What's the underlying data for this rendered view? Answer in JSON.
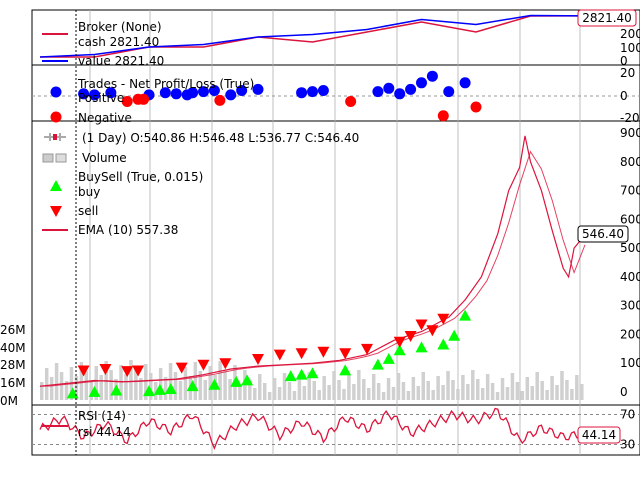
{
  "chart_data": [
    {
      "type": "line",
      "panel": "broker",
      "legend": {
        "title": "Broker (None)",
        "cash_label": "cash 2821.40",
        "value_label": "value 2821.40",
        "placement": "top-left"
      },
      "last_value_tag": "2821.40",
      "ylim": [
        0,
        2800
      ],
      "y_ticks": [
        0,
        100,
        200
      ],
      "colors": {
        "cash": "#dc143c",
        "value": "#0000ff"
      },
      "x": [
        0,
        10,
        20,
        30,
        40,
        50,
        60,
        70,
        80,
        90,
        100
      ],
      "series": [
        {
          "name": "cash",
          "values": [
            2000,
            2000,
            2200,
            2200,
            2400,
            2300,
            2500,
            2700,
            2500,
            2820,
            2821.4
          ]
        },
        {
          "name": "value",
          "values": [
            2000,
            2050,
            2200,
            2250,
            2400,
            2450,
            2550,
            2750,
            2650,
            2830,
            2821.4
          ]
        }
      ]
    },
    {
      "type": "scatter",
      "panel": "trades",
      "legend": {
        "title": "Trades - Net Profit/Loss (True)",
        "positive_label": "Positive",
        "negative_label": "Negative",
        "placement": "top-left"
      },
      "y_ticks": [
        0,
        -20
      ],
      "ylim": [
        -30,
        30
      ],
      "colors": {
        "positive": "#0000ff",
        "negative": "#ff0000"
      },
      "series": [
        {
          "name": "Positive",
          "x": [
            8,
            10,
            13,
            20,
            23,
            25,
            27,
            28,
            30,
            32,
            35,
            37,
            40,
            48,
            50,
            52,
            62,
            64,
            66,
            68,
            70,
            72,
            75,
            78
          ],
          "y": [
            2,
            1,
            3,
            1,
            3,
            2,
            1,
            3,
            4,
            5,
            1,
            5,
            6,
            3,
            4,
            5,
            4,
            7,
            2,
            6,
            12,
            18,
            4,
            12
          ]
        },
        {
          "name": "Negative",
          "x": [
            16,
            18,
            19,
            33,
            57,
            74,
            80
          ],
          "y": [
            -5,
            -3,
            -3,
            -4,
            -5,
            -18,
            -10
          ]
        }
      ]
    },
    {
      "type": "line",
      "panel": "price",
      "legend": {
        "ohlc_label": "(1 Day) O:540.86 H:546.48 L:536.77 C:546.40",
        "volume_label": "Volume",
        "buysell_label": "BuySell (True, 0.015)",
        "buy_label": "buy",
        "sell_label": "sell",
        "ema_label": "EMA (10) 557.38",
        "placement": "top-left"
      },
      "last_price_tag": "546.40",
      "ylim": [
        -50,
        950
      ],
      "y_ticks": [
        0,
        100,
        200,
        300,
        400,
        500,
        600,
        700,
        800,
        900
      ],
      "y_ticks_left": [
        "0M",
        "16M",
        "28M",
        "40M",
        "26M"
      ],
      "colors": {
        "price": "#dc143c",
        "ema": "#dc143c",
        "buy": "#00ff00",
        "sell": "#ff0000",
        "volume": "#c8c8c8"
      },
      "x": [
        0,
        5,
        10,
        15,
        20,
        25,
        30,
        35,
        40,
        45,
        50,
        55,
        60,
        65,
        70,
        75,
        78,
        81,
        84,
        86,
        88,
        89,
        90,
        92,
        94,
        96,
        97,
        98,
        100
      ],
      "close": [
        20,
        30,
        40,
        35,
        40,
        45,
        60,
        80,
        90,
        95,
        100,
        110,
        130,
        180,
        210,
        260,
        320,
        400,
        550,
        700,
        780,
        890,
        800,
        700,
        560,
        430,
        400,
        500,
        546.4
      ],
      "buy_x": [
        6,
        10,
        14,
        20,
        22,
        24,
        28,
        32,
        36,
        38,
        46,
        48,
        50,
        56,
        62,
        64,
        66,
        70,
        74,
        76,
        78
      ],
      "buy_y": [
        30,
        35,
        40,
        38,
        42,
        45,
        55,
        60,
        70,
        75,
        90,
        95,
        100,
        110,
        130,
        150,
        180,
        190,
        200,
        230,
        300
      ],
      "sell_x": [
        8,
        12,
        16,
        18,
        26,
        30,
        34,
        40,
        44,
        48,
        52,
        56,
        60,
        66,
        68,
        70,
        72,
        74
      ],
      "sell_y": [
        40,
        45,
        38,
        40,
        50,
        60,
        65,
        80,
        95,
        100,
        105,
        100,
        115,
        140,
        160,
        200,
        180,
        220
      ]
    },
    {
      "type": "line",
      "panel": "rsi",
      "legend": {
        "title": "RSI (14)",
        "value_label": "rsi 44.14",
        "placement": "top-left"
      },
      "last_value_tag": "44.14",
      "ylim": [
        20,
        80
      ],
      "y_ticks": [
        30,
        70
      ],
      "colors": {
        "rsi": "#dc143c"
      },
      "x": [
        0,
        4,
        8,
        12,
        16,
        20,
        24,
        28,
        32,
        36,
        40,
        44,
        48,
        52,
        56,
        60,
        64,
        68,
        72,
        76,
        80,
        84,
        88,
        92,
        96,
        100
      ],
      "values": [
        50,
        65,
        40,
        58,
        35,
        62,
        48,
        70,
        30,
        55,
        68,
        42,
        60,
        38,
        66,
        50,
        72,
        45,
        58,
        70,
        62,
        75,
        35,
        52,
        40,
        44.14
      ]
    }
  ]
}
